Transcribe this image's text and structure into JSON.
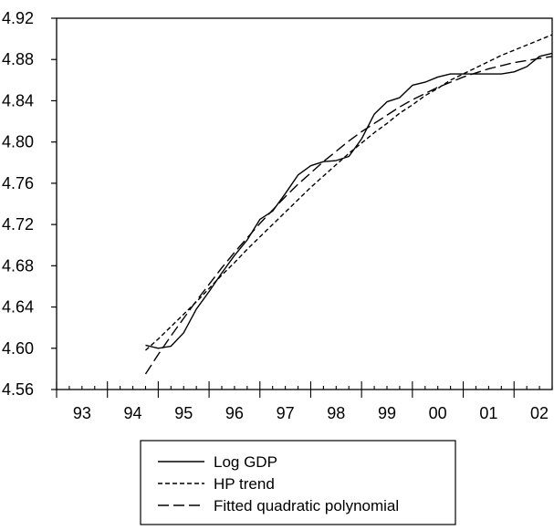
{
  "chart_data": {
    "type": "line",
    "title": "",
    "xlabel": "",
    "ylabel": "",
    "x_axis": {
      "min": 1993.0,
      "max": 2002.75,
      "tick_labels": [
        "93",
        "94",
        "95",
        "96",
        "97",
        "98",
        "99",
        "00",
        "01",
        "02"
      ],
      "tick_years": [
        1993,
        1994,
        1995,
        1996,
        1997,
        1998,
        1999,
        2000,
        2001,
        2002
      ]
    },
    "y_axis": {
      "min": 4.56,
      "max": 4.92,
      "ticks": [
        "4.56",
        "4.60",
        "4.64",
        "4.68",
        "4.72",
        "4.76",
        "4.80",
        "4.84",
        "4.88",
        "4.92"
      ],
      "tick_values": [
        4.56,
        4.6,
        4.64,
        4.68,
        4.72,
        4.76,
        4.8,
        4.84,
        4.88,
        4.92
      ]
    },
    "grid": false,
    "legend_position": "bottom",
    "x": [
      1994.75,
      1995.0,
      1995.25,
      1995.5,
      1995.75,
      1996.0,
      1996.25,
      1996.5,
      1996.75,
      1997.0,
      1997.25,
      1997.5,
      1997.75,
      1998.0,
      1998.25,
      1998.5,
      1998.75,
      1999.0,
      1999.25,
      1999.5,
      1999.75,
      2000.0,
      2000.25,
      2000.5,
      2000.75,
      2001.0,
      2001.25,
      2001.5,
      2001.75,
      2002.0,
      2002.25,
      2002.5,
      2002.75
    ],
    "series": [
      {
        "name": "Log GDP",
        "style": "solid",
        "color": "#000000",
        "values": [
          4.603,
          4.6,
          4.602,
          4.615,
          4.638,
          4.655,
          4.673,
          4.69,
          4.705,
          4.725,
          4.733,
          4.75,
          4.768,
          4.777,
          4.781,
          4.782,
          4.786,
          4.803,
          4.827,
          4.839,
          4.843,
          4.855,
          4.858,
          4.863,
          4.866,
          4.866,
          4.866,
          4.866,
          4.866,
          4.868,
          4.873,
          4.883,
          4.886
        ]
      },
      {
        "name": "HP trend",
        "style": "short-dash",
        "color": "#000000",
        "values": [
          4.598,
          4.609,
          4.621,
          4.633,
          4.645,
          4.658,
          4.671,
          4.683,
          4.696,
          4.708,
          4.72,
          4.732,
          4.744,
          4.756,
          4.767,
          4.778,
          4.789,
          4.799,
          4.809,
          4.818,
          4.828,
          4.836,
          4.845,
          4.852,
          4.86,
          4.866,
          4.872,
          4.878,
          4.884,
          4.889,
          4.894,
          4.899,
          4.904
        ]
      },
      {
        "name": "Fitted quadratic polynomial",
        "style": "long-dash",
        "color": "#000000",
        "values": [
          4.575,
          4.594,
          4.612,
          4.629,
          4.646,
          4.662,
          4.678,
          4.693,
          4.707,
          4.721,
          4.734,
          4.747,
          4.759,
          4.77,
          4.781,
          4.791,
          4.801,
          4.81,
          4.818,
          4.826,
          4.834,
          4.841,
          4.847,
          4.853,
          4.858,
          4.863,
          4.867,
          4.871,
          4.874,
          4.877,
          4.879,
          4.881,
          4.883
        ]
      }
    ]
  }
}
